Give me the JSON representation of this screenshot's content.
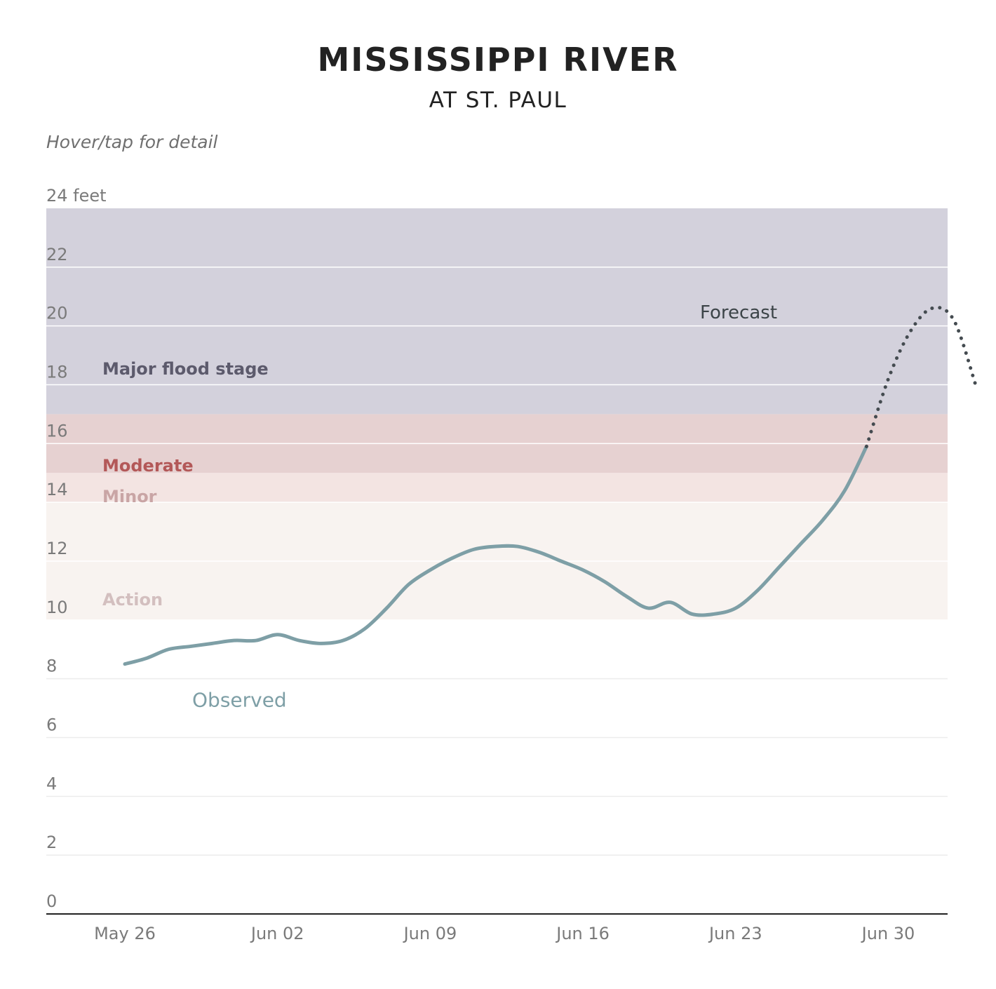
{
  "title": "MISSISSIPPI RIVER",
  "subtitle": "AT ST. PAUL",
  "hint": "Hover/tap for detail",
  "chart_data": {
    "type": "line",
    "title": "MISSISSIPPI RIVER",
    "subtitle": "AT ST. PAUL",
    "xlabel": "",
    "ylabel": "feet",
    "ylim": [
      0,
      24
    ],
    "xlim": [
      "2024-05-25",
      "2024-07-02"
    ],
    "y_ticks": [
      0,
      2,
      4,
      6,
      8,
      10,
      12,
      14,
      16,
      18,
      20,
      22,
      24
    ],
    "y_tick_labels": [
      "0",
      "2",
      "4",
      "6",
      "8",
      "10",
      "12",
      "14",
      "16",
      "18",
      "20",
      "22",
      "24 feet"
    ],
    "x_ticks": [
      "2024-05-26",
      "2024-06-02",
      "2024-06-09",
      "2024-06-16",
      "2024-06-23",
      "2024-06-30"
    ],
    "x_tick_labels": [
      "May 26",
      "Jun 02",
      "Jun 09",
      "Jun 16",
      "Jun 23",
      "Jun 30"
    ],
    "grid": true,
    "legend": "none",
    "flood_stages": [
      {
        "label": "Action",
        "from": 10,
        "to": 14,
        "color": "#f8f3f0",
        "label_color": "#d3bfbf"
      },
      {
        "label": "Minor",
        "from": 14,
        "to": 15,
        "color": "#f3e4e2",
        "label_color": "#c9a5a5"
      },
      {
        "label": "Moderate",
        "from": 15,
        "to": 17,
        "color": "#e6d1d1",
        "label_color": "#b35858"
      },
      {
        "label": "Major flood stage",
        "from": 17,
        "to": 24,
        "color": "#d3d1dc",
        "label_color": "#5c5a6c"
      }
    ],
    "series": [
      {
        "name": "Observed",
        "style": "solid",
        "color": "#7e9fa6",
        "points": [
          [
            "2024-05-26",
            8.5
          ],
          [
            "2024-05-27",
            8.7
          ],
          [
            "2024-05-28",
            9.0
          ],
          [
            "2024-05-29",
            9.1
          ],
          [
            "2024-05-30",
            9.2
          ],
          [
            "2024-05-31",
            9.3
          ],
          [
            "2024-06-01",
            9.3
          ],
          [
            "2024-06-02",
            9.5
          ],
          [
            "2024-06-03",
            9.3
          ],
          [
            "2024-06-04",
            9.2
          ],
          [
            "2024-06-05",
            9.3
          ],
          [
            "2024-06-06",
            9.7
          ],
          [
            "2024-06-07",
            10.4
          ],
          [
            "2024-06-08",
            11.2
          ],
          [
            "2024-06-09",
            11.7
          ],
          [
            "2024-06-10",
            12.1
          ],
          [
            "2024-06-11",
            12.4
          ],
          [
            "2024-06-12",
            12.5
          ],
          [
            "2024-06-13",
            12.5
          ],
          [
            "2024-06-14",
            12.3
          ],
          [
            "2024-06-15",
            12.0
          ],
          [
            "2024-06-16",
            11.7
          ],
          [
            "2024-06-17",
            11.3
          ],
          [
            "2024-06-18",
            10.8
          ],
          [
            "2024-06-19",
            10.4
          ],
          [
            "2024-06-20",
            10.6
          ],
          [
            "2024-06-21",
            10.2
          ],
          [
            "2024-06-22",
            10.2
          ],
          [
            "2024-06-23",
            10.4
          ],
          [
            "2024-06-24",
            11.0
          ],
          [
            "2024-06-25",
            11.8
          ],
          [
            "2024-06-26",
            12.6
          ],
          [
            "2024-06-27",
            13.4
          ],
          [
            "2024-06-28",
            14.4
          ],
          [
            "2024-06-29",
            15.9
          ]
        ]
      },
      {
        "name": "Forecast",
        "style": "dotted",
        "color": "#444b50",
        "points": [
          [
            "2024-06-29",
            15.9
          ],
          [
            "2024-06-30",
            18.2
          ],
          [
            "2024-07-01",
            19.8
          ],
          [
            "2024-07-02",
            20.6
          ],
          [
            "2024-07-03",
            20.2
          ],
          [
            "2024-07-04",
            18.0
          ]
        ]
      }
    ]
  }
}
